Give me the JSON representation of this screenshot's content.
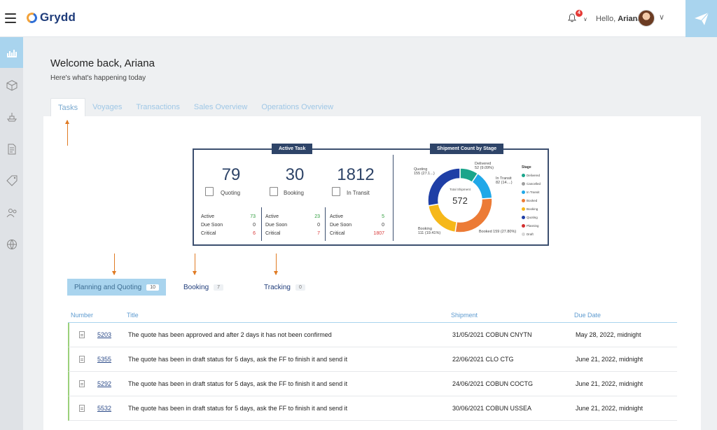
{
  "header": {
    "app_name": "Grydd",
    "notification_count": "4",
    "greeting": "Hello,",
    "user_name": "Ariana"
  },
  "sidebar": {
    "items": [
      {
        "icon": "dashboard-icon",
        "active": true
      },
      {
        "icon": "box-icon"
      },
      {
        "icon": "ship-icon"
      },
      {
        "icon": "document-icon"
      },
      {
        "icon": "tag-icon"
      },
      {
        "icon": "users-icon"
      },
      {
        "icon": "globe-icon"
      }
    ]
  },
  "page": {
    "title": "Welcome back, Ariana",
    "subtitle": "Here's what's happening today"
  },
  "tabs": [
    "Tasks",
    "Voyages",
    "Transactions",
    "Sales Overview",
    "Operations Overview"
  ],
  "active_task": {
    "label": "Active Task",
    "cards": [
      {
        "value": "79",
        "label": "Quoting",
        "active_label": "Active",
        "active": "73",
        "due_label": "Due Soon",
        "due": "0",
        "critical_label": "Critical",
        "critical": "6"
      },
      {
        "value": "30",
        "label": "Booking",
        "active_label": "Active",
        "active": "23",
        "due_label": "Due Soon",
        "due": "0",
        "critical_label": "Critical",
        "critical": "7"
      },
      {
        "value": "1812",
        "label": "In Transit",
        "active_label": "Active",
        "active": "5",
        "due_label": "Due Soon",
        "due": "0",
        "critical_label": "Critical",
        "critical": "1807"
      }
    ]
  },
  "chart_data": {
    "type": "pie",
    "title": "Shipment Count by Stage",
    "center_label": "Total Shipment",
    "center_value": "572",
    "legend_title": "Stage",
    "legend": [
      "Delivered",
      "Cancelled",
      "In Transit",
      "Booked",
      "Booking",
      "Quoting",
      "Planning",
      "Draft"
    ],
    "legend_colors": [
      "#1aa58b",
      "#9e9e9e",
      "#20a8e8",
      "#ec7b36",
      "#f6b81a",
      "#1f3fa6",
      "#d32f2f",
      "#d9d9d9"
    ],
    "slices": [
      {
        "label": "Delivered",
        "value": 52,
        "color": "#1aa58b",
        "annotation": [
          "Delivered",
          "52 (9.09%)"
        ]
      },
      {
        "label": "In Transit",
        "value": 82,
        "color": "#20a8e8",
        "annotation": [
          "In Transit",
          "82 (14....)"
        ]
      },
      {
        "label": "Booked",
        "value": 159,
        "color": "#ec7b36",
        "annotation": [
          "Booked 159 (27.80%)"
        ]
      },
      {
        "label": "Booking",
        "value": 111,
        "color": "#f6b81a",
        "annotation": [
          "Booking",
          "111 (19.41%)"
        ]
      },
      {
        "label": "Quoting",
        "value": 155,
        "color": "#1f3fa6",
        "annotation": [
          "Quoting",
          "155 (27.1...)"
        ]
      }
    ]
  },
  "subtabs": [
    {
      "label": "Planning and Quoting",
      "count": "10"
    },
    {
      "label": "Booking",
      "count": "7"
    },
    {
      "label": "Tracking",
      "count": "0"
    }
  ],
  "table": {
    "columns": [
      "Number",
      "Title",
      "Shipment",
      "Due Date"
    ],
    "rows": [
      {
        "number": "5203",
        "title": "The quote has been approved and after 2 days it has not been confirmed",
        "shipment": "31/05/2021 COBUN CNYTN",
        "due": "May 28, 2022, midnight"
      },
      {
        "number": "5355",
        "title": "The quote has been in draft status for 5 days, ask the FF to finish it and send it",
        "shipment": "22/06/2021 CLO CTG",
        "due": "June 21, 2022, midnight"
      },
      {
        "number": "5292",
        "title": "The quote has been in draft status for 5 days, ask the FF to finish it and send it",
        "shipment": "24/06/2021 COBUN COCTG",
        "due": "June 21, 2022, midnight"
      },
      {
        "number": "5532",
        "title": "The quote has been in draft status for 5 days, ask the FF to finish it and send it",
        "shipment": "30/06/2021 COBUN USSEA",
        "due": "June 21, 2022, midnight"
      }
    ]
  }
}
